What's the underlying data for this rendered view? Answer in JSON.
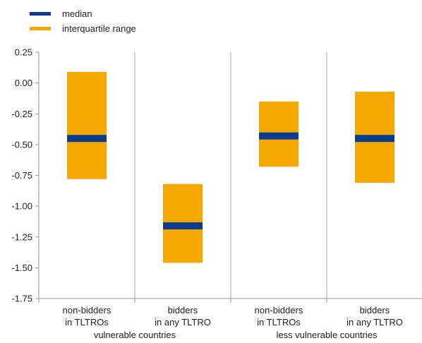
{
  "chart_data": {
    "type": "box",
    "legend": [
      {
        "key": "median",
        "label": "median",
        "color": "#0a3d91"
      },
      {
        "key": "iqr",
        "label": "interquartile range",
        "color": "#f5a800"
      }
    ],
    "ylim": [
      -1.75,
      0.25
    ],
    "yticks": [
      "0.25",
      "0.00",
      "-0.25",
      "-0.50",
      "-0.75",
      "-1.00",
      "-1.25",
      "-1.50",
      "-1.75"
    ],
    "ytick_values": [
      0.25,
      0.0,
      -0.25,
      -0.5,
      -0.75,
      -1.0,
      -1.25,
      -1.5,
      -1.75
    ],
    "categories": [
      {
        "line1": "non-bidders",
        "line2": "in TLTROs",
        "q1": -0.78,
        "q3": 0.09,
        "median": -0.45
      },
      {
        "line1": "bidders",
        "line2": "in any TLTRO",
        "q1": -1.46,
        "q3": -0.82,
        "median": -1.16
      },
      {
        "line1": "non-bidders",
        "line2": "in TLTROs",
        "q1": -0.68,
        "q3": -0.15,
        "median": -0.43
      },
      {
        "line1": "bidders",
        "line2": "in any TLTRO",
        "q1": -0.81,
        "q3": -0.07,
        "median": -0.45
      }
    ],
    "groups": [
      {
        "label": "vulnerable countries",
        "span": [
          0,
          1
        ]
      },
      {
        "label": "less vulnerable countries",
        "span": [
          2,
          3
        ]
      }
    ],
    "grid": "vertical separators"
  }
}
